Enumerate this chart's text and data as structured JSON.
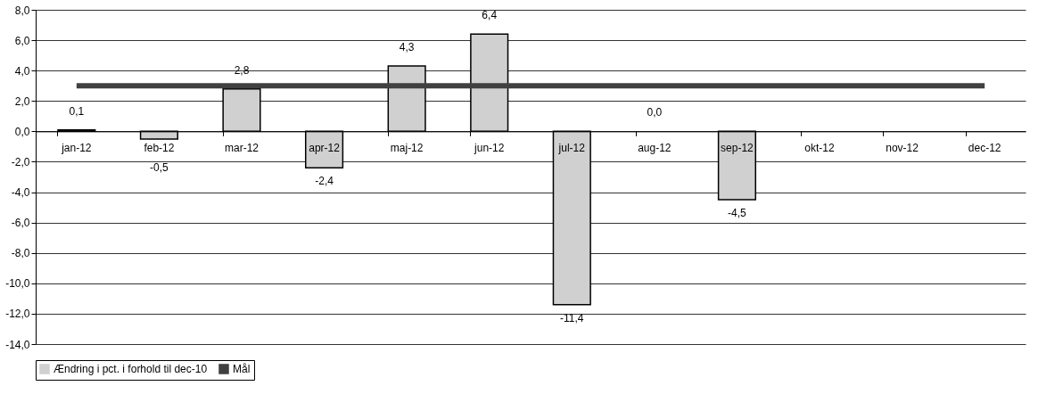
{
  "chart_data": {
    "type": "bar",
    "categories": [
      "jan-12",
      "feb-12",
      "mar-12",
      "apr-12",
      "maj-12",
      "jun-12",
      "jul-12",
      "aug-12",
      "sep-12",
      "okt-12",
      "nov-12",
      "dec-12"
    ],
    "series": [
      {
        "name": "Ændring i pct. i forhold til dec-10",
        "color": "#d0d0d0",
        "values": [
          0.1,
          -0.5,
          2.8,
          -2.4,
          4.3,
          6.4,
          -11.4,
          0.0,
          -4.5,
          null,
          null,
          null
        ],
        "value_labels": [
          "0,1",
          "-0,5",
          "2,8",
          "-2,4",
          "4,3",
          "6,4",
          "-11,4",
          "0,0",
          "-4,5",
          null,
          null,
          null
        ]
      },
      {
        "name": "Mål",
        "type": "line",
        "color": "#404040",
        "values": [
          3.0,
          3.0,
          3.0,
          3.0,
          3.0,
          3.0,
          3.0,
          3.0,
          3.0,
          3.0,
          3.0,
          3.0
        ]
      }
    ],
    "ylim": [
      -14,
      8
    ],
    "yticks": [
      {
        "value": -14,
        "label": "-14,0"
      },
      {
        "value": -12,
        "label": "-12,0"
      },
      {
        "value": -10,
        "label": "-10,0"
      },
      {
        "value": -8,
        "label": "-8,0"
      },
      {
        "value": -6,
        "label": "-6,0"
      },
      {
        "value": -4,
        "label": "-4,0"
      },
      {
        "value": -2,
        "label": "-2,0"
      },
      {
        "value": 0,
        "label": "0,0"
      },
      {
        "value": 2,
        "label": "2,0"
      },
      {
        "value": 4,
        "label": "4,0"
      },
      {
        "value": 6,
        "label": "6,0"
      },
      {
        "value": 8,
        "label": "8,0"
      }
    ],
    "grid": "y",
    "legend": "bottom"
  }
}
